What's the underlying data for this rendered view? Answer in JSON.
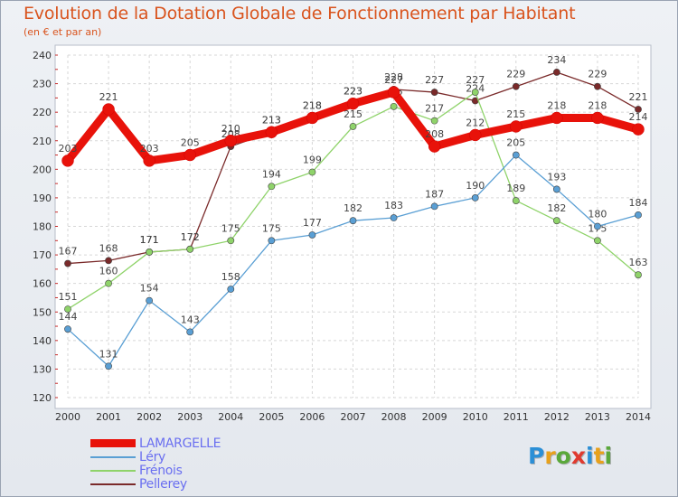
{
  "header": {
    "title": "Evolution de la Dotation Globale de Fonctionnement par Habitant",
    "subtitle": "(en € et par an)"
  },
  "logo": {
    "letters": [
      "P",
      "r",
      "o",
      "x",
      "i",
      "t",
      "i"
    ],
    "colors": [
      "#2b8fd6",
      "#e8a11b",
      "#5aa83a",
      "#e03a2f",
      "#2b8fd6",
      "#e8a11b",
      "#5aa83a"
    ]
  },
  "chart_data": {
    "type": "line",
    "x": [
      "2000",
      "2001",
      "2002",
      "2003",
      "2004",
      "2005",
      "2006",
      "2007",
      "2008",
      "2009",
      "2010",
      "2011",
      "2012",
      "2013",
      "2014"
    ],
    "ylim": [
      120,
      240
    ],
    "yticks": [
      120,
      130,
      140,
      150,
      160,
      170,
      180,
      190,
      200,
      210,
      220,
      230,
      240
    ],
    "grid": true,
    "legend_position": "bottom-left",
    "series": [
      {
        "name": "Pellerey",
        "color": "#7a2a2a",
        "values": [
          167,
          168,
          171,
          172,
          208,
          213,
          218,
          223,
          228,
          227,
          224,
          229,
          234,
          229,
          221
        ]
      },
      {
        "name": "Frénois",
        "color": "#8fd36a",
        "values": [
          151,
          160,
          171,
          172,
          175,
          194,
          199,
          215,
          222,
          217,
          227,
          189,
          182,
          175,
          163
        ]
      },
      {
        "name": "Léry",
        "color": "#5a9fd4",
        "values": [
          144,
          131,
          154,
          143,
          158,
          175,
          177,
          182,
          183,
          187,
          190,
          205,
          193,
          180,
          184
        ]
      },
      {
        "name": "LAMARGELLE",
        "color": "#e8120a",
        "values": [
          203,
          221,
          203,
          205,
          210,
          213,
          218,
          223,
          227,
          208,
          212,
          215,
          218,
          218,
          214
        ]
      }
    ]
  }
}
